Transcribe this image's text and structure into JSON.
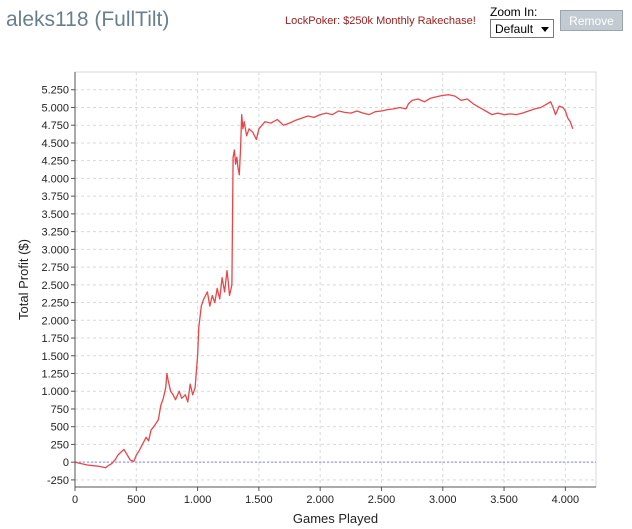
{
  "header": {
    "title": "aleks118 (FullTilt)",
    "promo_link": "LockPoker: $250k Monthly Rakechase!",
    "zoom_label": "Zoom In:",
    "zoom_value": "Default",
    "remove_label": "Remove"
  },
  "colors": {
    "line": "#e8474a",
    "zero_line": "#8080ff",
    "grid": "#d9d9d9",
    "title": "#6a7f8e",
    "promo": "#9c1c1c"
  },
  "chart_data": {
    "type": "line",
    "title": "",
    "xlabel": "Games Played",
    "ylabel": "Total Profit ($)",
    "xlim": [
      0,
      4250
    ],
    "ylim": [
      -350,
      5500
    ],
    "xticks": [
      0,
      500,
      1000,
      1500,
      2000,
      2500,
      3000,
      3500,
      4000
    ],
    "xtick_labels": [
      "0",
      "500",
      "1.000",
      "1.500",
      "2.000",
      "2.500",
      "3.000",
      "3.500",
      "4.000"
    ],
    "yticks": [
      -250,
      0,
      250,
      500,
      750,
      1000,
      1250,
      1500,
      1750,
      2000,
      2250,
      2500,
      2750,
      3000,
      3250,
      3500,
      3750,
      4000,
      4250,
      4500,
      4750,
      5000,
      5250
    ],
    "ytick_labels": [
      "-250",
      "0",
      "250",
      "500",
      "750",
      "1.000",
      "1.250",
      "1.500",
      "1.750",
      "2.000",
      "2.250",
      "2.500",
      "2.750",
      "3.000",
      "3.250",
      "3.500",
      "3.750",
      "4.000",
      "4.250",
      "4.500",
      "4.750",
      "5.000",
      "5.250"
    ],
    "grid": true,
    "reference_line": 0,
    "series": [
      {
        "x": [
          0,
          50,
          100,
          150,
          200,
          250,
          270,
          300,
          330,
          350,
          380,
          400,
          420,
          450,
          480,
          500,
          520,
          550,
          580,
          600,
          620,
          650,
          680,
          700,
          720,
          740,
          750,
          760,
          780,
          800,
          820,
          850,
          870,
          900,
          920,
          940,
          960,
          980,
          1000,
          1010,
          1030,
          1050,
          1080,
          1100,
          1120,
          1140,
          1160,
          1180,
          1200,
          1220,
          1240,
          1250,
          1260,
          1280,
          1290,
          1300,
          1310,
          1320,
          1330,
          1340,
          1350,
          1360,
          1370,
          1380,
          1400,
          1420,
          1450,
          1480,
          1500,
          1550,
          1600,
          1650,
          1700,
          1750,
          1800,
          1850,
          1900,
          1950,
          2000,
          2050,
          2100,
          2150,
          2200,
          2250,
          2300,
          2350,
          2400,
          2450,
          2500,
          2550,
          2600,
          2650,
          2700,
          2720,
          2750,
          2800,
          2850,
          2900,
          2950,
          3000,
          3050,
          3100,
          3150,
          3200,
          3250,
          3300,
          3350,
          3400,
          3450,
          3500,
          3550,
          3600,
          3650,
          3700,
          3750,
          3800,
          3850,
          3880,
          3900,
          3920,
          3950,
          3980,
          4000,
          4020,
          4040,
          4060
        ],
        "y": [
          0,
          -20,
          -40,
          -50,
          -60,
          -80,
          -50,
          -20,
          40,
          100,
          150,
          180,
          120,
          30,
          10,
          100,
          150,
          250,
          350,
          300,
          450,
          520,
          600,
          800,
          900,
          1050,
          1250,
          1150,
          1000,
          950,
          880,
          1000,
          900,
          950,
          850,
          1100,
          950,
          1050,
          1500,
          1900,
          2200,
          2300,
          2400,
          2200,
          2350,
          2250,
          2450,
          2300,
          2600,
          2400,
          2700,
          2550,
          2350,
          2500,
          4300,
          4400,
          4200,
          4300,
          4150,
          4050,
          4400,
          4900,
          4700,
          4800,
          4600,
          4700,
          4650,
          4550,
          4700,
          4800,
          4780,
          4830,
          4750,
          4780,
          4820,
          4850,
          4880,
          4860,
          4900,
          4920,
          4900,
          4950,
          4930,
          4920,
          4950,
          4920,
          4900,
          4940,
          4950,
          4970,
          4980,
          5000,
          4980,
          5050,
          5100,
          5120,
          5080,
          5130,
          5150,
          5170,
          5180,
          5160,
          5100,
          5120,
          5050,
          5000,
          4950,
          4900,
          4920,
          4900,
          4910,
          4900,
          4920,
          4950,
          4980,
          5000,
          5050,
          5080,
          5000,
          4900,
          5020,
          5000,
          4950,
          4850,
          4800,
          4700
        ]
      }
    ]
  }
}
